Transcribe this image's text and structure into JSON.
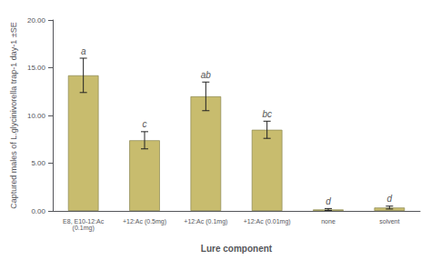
{
  "chart_data": {
    "type": "bar",
    "categories": [
      "E8, E10-12:Ac\n(0.1mg)",
      "+12:Ac (0.5mg)",
      "+12:Ac (0.1mg)",
      "+12:Ac (0.01mg)",
      "none",
      "solvent"
    ],
    "values": [
      14.2,
      7.4,
      12.0,
      8.5,
      0.15,
      0.35
    ],
    "errors": [
      1.8,
      0.9,
      1.5,
      0.9,
      0.1,
      0.15
    ],
    "annotations": [
      "a",
      "c",
      "ab",
      "bc",
      "d",
      "d"
    ],
    "color": "#c8bc6e",
    "xlabel": "Lure component",
    "ylabel": "Captured males of L.glycinivorella trap-1 day-1 ±SE",
    "ylim": [
      0,
      20.0
    ],
    "yticks": [
      {
        "value": 0.0,
        "label": "0.00"
      },
      {
        "value": 5.0,
        "label": "5.00"
      },
      {
        "value": 10.0,
        "label": "10.00"
      },
      {
        "value": 15.0,
        "label": "15.00"
      },
      {
        "value": 20.0,
        "label": "20.00"
      }
    ],
    "grid": false
  }
}
